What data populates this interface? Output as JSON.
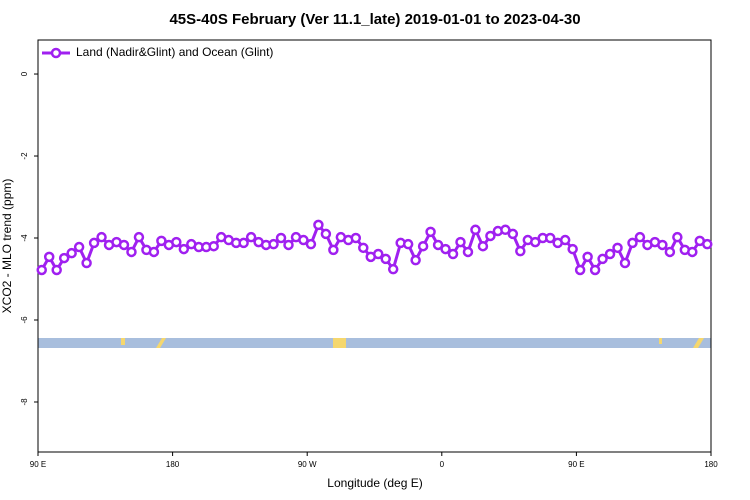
{
  "chart_data": {
    "type": "line",
    "title": "45S-40S February (Ver 11.1_late)   2019-01-01 to 2023-04-30",
    "x_label": "Longitude (deg E)",
    "y_label": "XCO2 - MLO trend (ppm)",
    "xlim": [
      90,
      540
    ],
    "ylim": [
      -9.22,
      0.83
    ],
    "xticks": [
      {
        "value": 90,
        "label": "90 E"
      },
      180,
      {
        "value": 270,
        "label": "90 W"
      },
      {
        "value": 360,
        "label": "0"
      },
      {
        "value": 450,
        "label": "90 E"
      },
      {
        "value": 540,
        "label": "180"
      }
    ],
    "yticks": [
      -8,
      -6,
      -4,
      -2,
      0
    ],
    "legend": "top-left",
    "x": [
      92.5,
      97.5,
      102.5,
      107.5,
      112.5,
      117.5,
      122.5,
      127.5,
      132.5,
      137.5,
      142.5,
      147.5,
      152.5,
      157.5,
      162.5,
      167.5,
      172.5,
      177.5,
      182.5,
      187.5,
      192.5,
      197.5,
      202.5,
      207.5,
      212.5,
      217.5,
      222.5,
      227.5,
      232.5,
      237.5,
      242.5,
      247.5,
      252.5,
      257.5,
      262.5,
      267.5,
      272.5,
      277.5,
      282.5,
      287.5,
      292.5,
      297.5,
      302.5,
      307.5,
      312.5,
      317.5,
      322.5,
      327.5,
      332.5,
      337.5,
      342.5,
      347.5,
      352.5,
      357.5,
      362.5,
      367.5,
      372.5,
      377.5,
      382.5,
      387.5,
      392.5,
      397.5,
      402.5,
      407.5,
      412.5,
      417.5,
      422.5,
      427.5,
      432.5,
      437.5,
      442.5,
      447.5,
      452.5,
      457.5,
      462.5,
      467.5,
      472.5,
      477.5,
      482.5,
      487.5,
      492.5,
      497.5,
      502.5,
      507.5,
      512.5,
      517.5,
      522.5,
      527.5,
      532.5,
      537.5
    ],
    "series": [
      {
        "name": "Land (Nadir&Glint) and Ocean (Glint)",
        "color": "#a020f0",
        "values": [
          -4.78,
          -4.46,
          -4.78,
          -4.49,
          -4.37,
          -4.22,
          -4.61,
          -4.12,
          -3.98,
          -4.17,
          -4.1,
          -4.17,
          -4.34,
          -3.98,
          -4.29,
          -4.34,
          -4.07,
          -4.17,
          -4.1,
          -4.27,
          -4.15,
          -4.22,
          -4.22,
          -4.2,
          -3.98,
          -4.05,
          -4.12,
          -4.12,
          -3.98,
          -4.1,
          -4.17,
          -4.15,
          -4.0,
          -4.17,
          -3.98,
          -4.05,
          -4.15,
          -3.68,
          -3.9,
          -4.29,
          -3.98,
          -4.05,
          -4.0,
          -4.24,
          -4.46,
          -4.39,
          -4.51,
          -4.76,
          -4.12,
          -4.15,
          -4.54,
          -4.2,
          -3.85,
          -4.17,
          -4.27,
          -4.39,
          -4.1,
          -4.34,
          -3.8,
          -4.2,
          -3.95,
          -3.83,
          -3.8,
          -3.9,
          -4.32,
          -4.05,
          -4.1,
          -4.0,
          -4.0,
          -4.12,
          -4.05,
          -4.27,
          -4.78,
          -4.46,
          -4.78,
          -4.51,
          -4.39,
          -4.24,
          -4.61,
          -4.12,
          -3.98,
          -4.17,
          -4.1,
          -4.17,
          -4.34,
          -3.98,
          -4.29,
          -4.34,
          -4.07,
          -4.15
        ]
      }
    ]
  }
}
